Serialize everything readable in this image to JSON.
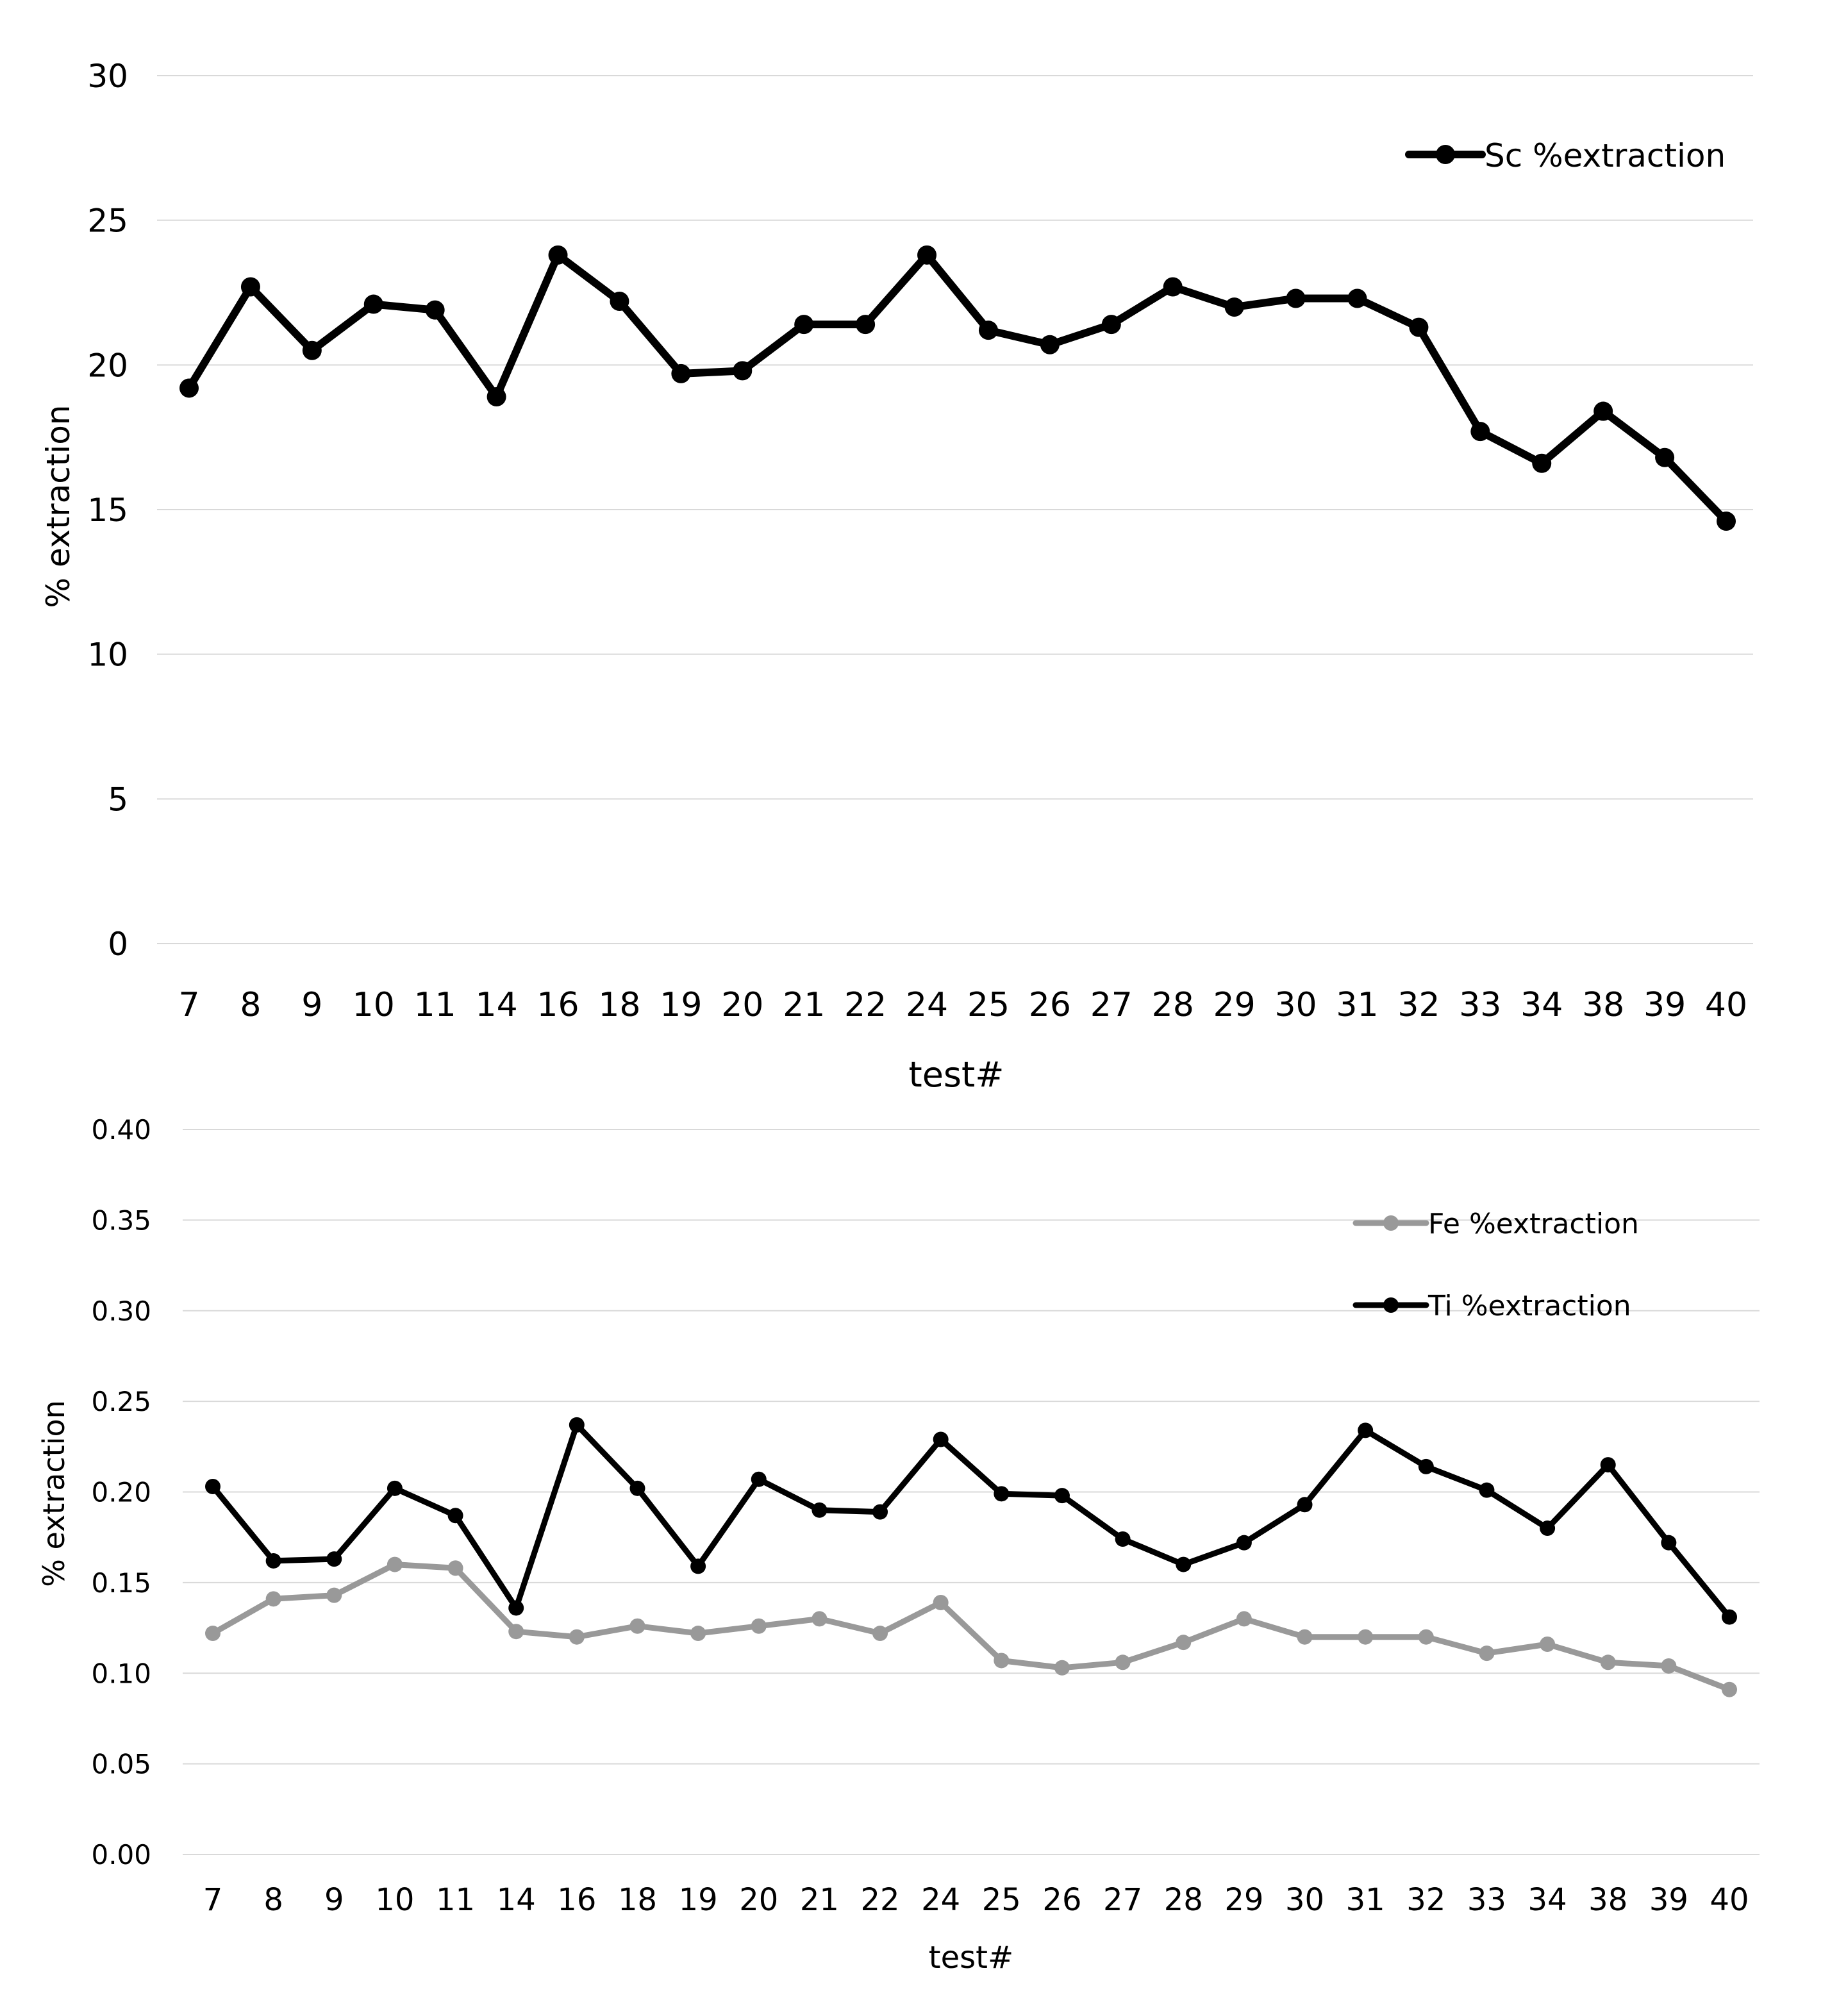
{
  "chart_data": [
    {
      "type": "line",
      "title": "",
      "xlabel": "test#",
      "ylabel": "% extraction",
      "ylim": [
        0,
        30
      ],
      "yticks": [
        "0",
        "5",
        "10",
        "15",
        "20",
        "25",
        "30"
      ],
      "grid": true,
      "legend_position": "top-right",
      "categories": [
        "7",
        "8",
        "9",
        "10",
        "11",
        "14",
        "16",
        "18",
        "19",
        "20",
        "21",
        "22",
        "24",
        "25",
        "26",
        "27",
        "28",
        "29",
        "30",
        "31",
        "32",
        "33",
        "34",
        "38",
        "39",
        "40"
      ],
      "series": [
        {
          "name": "Sc %extraction",
          "color": "#000000",
          "values": [
            19.2,
            22.7,
            20.5,
            22.1,
            21.9,
            18.9,
            23.8,
            22.2,
            19.7,
            19.8,
            21.4,
            21.4,
            23.8,
            21.2,
            20.7,
            21.4,
            22.7,
            22.0,
            22.3,
            22.3,
            21.3,
            17.7,
            16.6,
            18.4,
            16.8,
            14.6
          ]
        }
      ]
    },
    {
      "type": "line",
      "title": "",
      "xlabel": "test#",
      "ylabel": "% extraction",
      "ylim": [
        0,
        0.4
      ],
      "yticks": [
        "0.00",
        "0.05",
        "0.10",
        "0.15",
        "0.20",
        "0.25",
        "0.30",
        "0.35",
        "0.40"
      ],
      "grid": true,
      "legend_position": "top-right",
      "categories": [
        "7",
        "8",
        "9",
        "10",
        "11",
        "14",
        "16",
        "18",
        "19",
        "20",
        "21",
        "22",
        "24",
        "25",
        "26",
        "27",
        "28",
        "29",
        "30",
        "31",
        "32",
        "33",
        "34",
        "38",
        "39",
        "40"
      ],
      "series": [
        {
          "name": "Fe %extraction",
          "color": "#999999",
          "values": [
            0.122,
            0.141,
            0.143,
            0.16,
            0.158,
            0.123,
            0.12,
            0.126,
            0.122,
            0.126,
            0.13,
            0.122,
            0.139,
            0.107,
            0.103,
            0.106,
            0.117,
            0.13,
            0.12,
            0.12,
            0.12,
            0.111,
            0.116,
            0.106,
            0.104,
            0.091
          ]
        },
        {
          "name": "Ti %extraction",
          "color": "#000000",
          "values": [
            0.203,
            0.162,
            0.163,
            0.202,
            0.187,
            0.136,
            0.237,
            0.202,
            0.159,
            0.207,
            0.19,
            0.189,
            0.229,
            0.199,
            0.198,
            0.174,
            0.16,
            0.172,
            0.193,
            0.234,
            0.214,
            0.201,
            0.18,
            0.215,
            0.172,
            0.131
          ]
        }
      ]
    }
  ]
}
